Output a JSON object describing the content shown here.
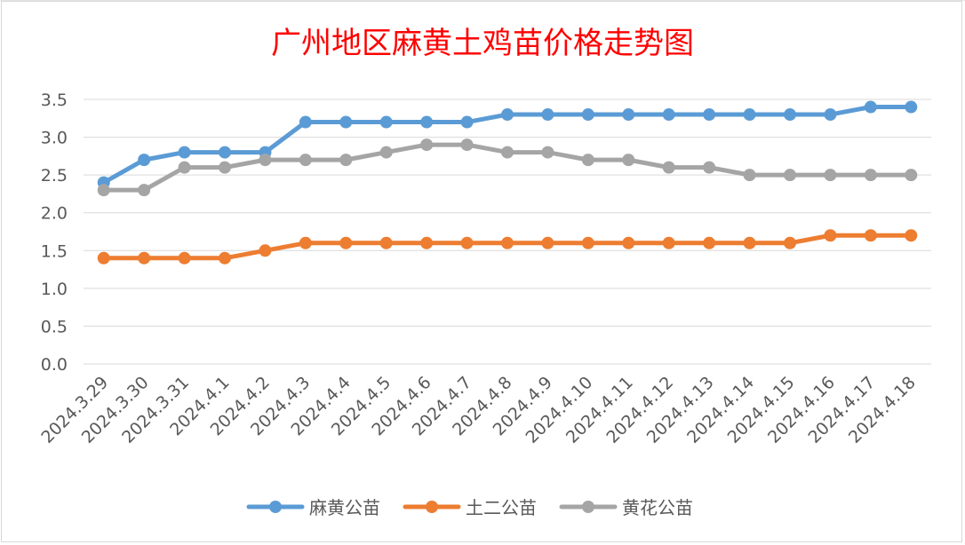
{
  "chart_data": {
    "type": "line",
    "title": "广州地区麻黄土鸡苗价格走势图",
    "categories": [
      "2024.3.29",
      "2024.3.30",
      "2024.3.31",
      "2024.4.1",
      "2024.4.2",
      "2024.4.3",
      "2024.4.4",
      "2024.4.5",
      "2024.4.6",
      "2024.4.7",
      "2024.4.8",
      "2024.4.9",
      "2024.4.10",
      "2024.4.11",
      "2024.4.12",
      "2024.4.13",
      "2024.4.14",
      "2024.4.15",
      "2024.4.16",
      "2024.4.17",
      "2024.4.18"
    ],
    "series": [
      {
        "name": "麻黄公苗",
        "color": "#5b9bd5",
        "values": [
          2.4,
          2.7,
          2.8,
          2.8,
          2.8,
          3.2,
          3.2,
          3.2,
          3.2,
          3.2,
          3.3,
          3.3,
          3.3,
          3.3,
          3.3,
          3.3,
          3.3,
          3.3,
          3.3,
          3.4,
          3.4
        ]
      },
      {
        "name": "土二公苗",
        "color": "#ed7d31",
        "values": [
          1.4,
          1.4,
          1.4,
          1.4,
          1.5,
          1.6,
          1.6,
          1.6,
          1.6,
          1.6,
          1.6,
          1.6,
          1.6,
          1.6,
          1.6,
          1.6,
          1.6,
          1.6,
          1.7,
          1.7,
          1.7
        ]
      },
      {
        "name": "黄花公苗",
        "color": "#a5a5a5",
        "values": [
          2.3,
          2.3,
          2.6,
          2.6,
          2.7,
          2.7,
          2.7,
          2.8,
          2.9,
          2.9,
          2.8,
          2.8,
          2.7,
          2.7,
          2.6,
          2.6,
          2.5,
          2.5,
          2.5,
          2.5,
          2.5
        ]
      }
    ],
    "yticks": [
      "0.0",
      "0.5",
      "1.0",
      "1.5",
      "2.0",
      "2.5",
      "3.0",
      "3.5"
    ],
    "ylim": [
      0,
      3.5
    ],
    "grid": true,
    "legend_position": "bottom"
  }
}
